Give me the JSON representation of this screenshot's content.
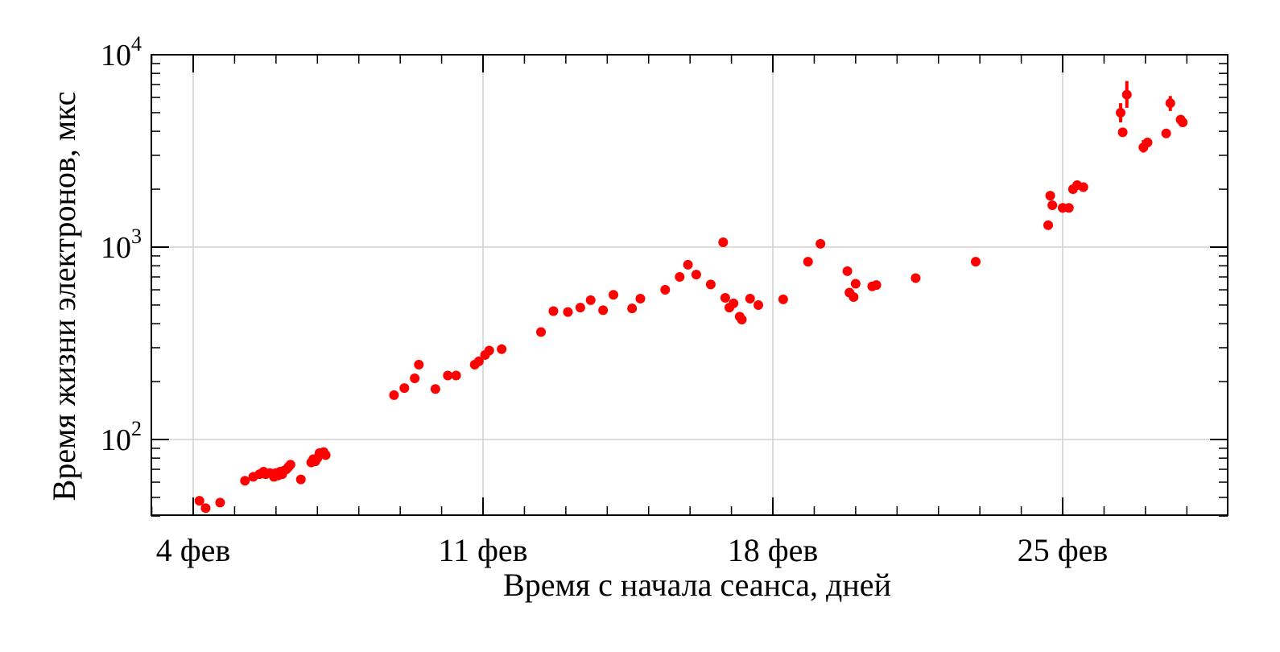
{
  "chart_data": {
    "type": "scatter",
    "title": "",
    "xlabel": "Время с начала сеанса, дней",
    "ylabel": "Время жизни электронов, мкс",
    "x_ticks": [
      {
        "value": 4,
        "label": "4 фев"
      },
      {
        "value": 11,
        "label": "11 фев"
      },
      {
        "value": 18,
        "label": "18 фев"
      },
      {
        "value": 25,
        "label": "25 фев"
      }
    ],
    "xlim": [
      2.9,
      28.9
    ],
    "y_scale": "log",
    "ylim": [
      40,
      10000
    ],
    "y_ticks": [
      {
        "value": 100,
        "base": "10",
        "exp": "2"
      },
      {
        "value": 1000,
        "base": "10",
        "exp": "3"
      },
      {
        "value": 10000,
        "base": "10",
        "exp": "4"
      }
    ],
    "grid": true,
    "marker_color": "#ff0000",
    "points": [
      {
        "x": 4.15,
        "y": 48
      },
      {
        "x": 4.3,
        "y": 44
      },
      {
        "x": 4.65,
        "y": 47
      },
      {
        "x": 5.25,
        "y": 61
      },
      {
        "x": 5.45,
        "y": 64
      },
      {
        "x": 5.6,
        "y": 66
      },
      {
        "x": 5.7,
        "y": 68
      },
      {
        "x": 5.75,
        "y": 66
      },
      {
        "x": 5.85,
        "y": 67
      },
      {
        "x": 5.95,
        "y": 64
      },
      {
        "x": 6.0,
        "y": 67
      },
      {
        "x": 6.05,
        "y": 65
      },
      {
        "x": 6.1,
        "y": 68
      },
      {
        "x": 6.15,
        "y": 66
      },
      {
        "x": 6.2,
        "y": 69
      },
      {
        "x": 6.25,
        "y": 70
      },
      {
        "x": 6.3,
        "y": 72
      },
      {
        "x": 6.35,
        "y": 74
      },
      {
        "x": 6.6,
        "y": 62
      },
      {
        "x": 6.85,
        "y": 76
      },
      {
        "x": 6.9,
        "y": 79
      },
      {
        "x": 6.95,
        "y": 77
      },
      {
        "x": 7.0,
        "y": 80
      },
      {
        "x": 7.05,
        "y": 85
      },
      {
        "x": 7.1,
        "y": 84
      },
      {
        "x": 7.15,
        "y": 86
      },
      {
        "x": 7.2,
        "y": 83
      },
      {
        "x": 8.85,
        "y": 170
      },
      {
        "x": 9.1,
        "y": 185
      },
      {
        "x": 9.35,
        "y": 208
      },
      {
        "x": 9.45,
        "y": 245
      },
      {
        "x": 9.85,
        "y": 183
      },
      {
        "x": 10.15,
        "y": 215
      },
      {
        "x": 10.35,
        "y": 215
      },
      {
        "x": 10.8,
        "y": 245
      },
      {
        "x": 10.9,
        "y": 255
      },
      {
        "x": 11.05,
        "y": 275
      },
      {
        "x": 11.15,
        "y": 290
      },
      {
        "x": 11.45,
        "y": 295
      },
      {
        "x": 12.4,
        "y": 362
      },
      {
        "x": 12.7,
        "y": 465
      },
      {
        "x": 13.05,
        "y": 460
      },
      {
        "x": 13.35,
        "y": 485
      },
      {
        "x": 13.6,
        "y": 530
      },
      {
        "x": 13.9,
        "y": 470
      },
      {
        "x": 14.15,
        "y": 565
      },
      {
        "x": 14.6,
        "y": 480
      },
      {
        "x": 14.8,
        "y": 540
      },
      {
        "x": 15.4,
        "y": 600
      },
      {
        "x": 15.75,
        "y": 700
      },
      {
        "x": 15.95,
        "y": 810
      },
      {
        "x": 16.15,
        "y": 720
      },
      {
        "x": 16.5,
        "y": 640
      },
      {
        "x": 16.8,
        "y": 1060
      },
      {
        "x": 16.85,
        "y": 545
      },
      {
        "x": 16.95,
        "y": 485
      },
      {
        "x": 17.05,
        "y": 510
      },
      {
        "x": 17.2,
        "y": 435
      },
      {
        "x": 17.25,
        "y": 420
      },
      {
        "x": 17.45,
        "y": 540
      },
      {
        "x": 17.65,
        "y": 500
      },
      {
        "x": 18.25,
        "y": 535
      },
      {
        "x": 18.85,
        "y": 840
      },
      {
        "x": 19.15,
        "y": 1040
      },
      {
        "x": 19.8,
        "y": 750
      },
      {
        "x": 19.85,
        "y": 580
      },
      {
        "x": 19.95,
        "y": 550
      },
      {
        "x": 20.0,
        "y": 645
      },
      {
        "x": 20.4,
        "y": 625
      },
      {
        "x": 20.5,
        "y": 635
      },
      {
        "x": 21.45,
        "y": 690
      },
      {
        "x": 22.9,
        "y": 840
      },
      {
        "x": 24.65,
        "y": 1300
      },
      {
        "x": 24.7,
        "y": 1850
      },
      {
        "x": 24.75,
        "y": 1650
      },
      {
        "x": 25.0,
        "y": 1600
      },
      {
        "x": 25.15,
        "y": 1600
      },
      {
        "x": 25.25,
        "y": 2000
      },
      {
        "x": 25.35,
        "y": 2100
      },
      {
        "x": 25.5,
        "y": 2050
      },
      {
        "x": 26.4,
        "y": 5000
      },
      {
        "x": 26.45,
        "y": 3950
      },
      {
        "x": 26.55,
        "y": 6200
      },
      {
        "x": 26.95,
        "y": 3300
      },
      {
        "x": 27.05,
        "y": 3500
      },
      {
        "x": 27.5,
        "y": 3900
      },
      {
        "x": 27.6,
        "y": 5600
      },
      {
        "x": 27.85,
        "y": 4600
      },
      {
        "x": 27.9,
        "y": 4450
      }
    ],
    "error_bars": [
      {
        "x": 26.4,
        "y": 5000,
        "low": 4450,
        "high": 5600
      },
      {
        "x": 26.55,
        "y": 6200,
        "low": 5300,
        "high": 7300
      },
      {
        "x": 26.95,
        "y": 3300,
        "low": 3100,
        "high": 3600
      },
      {
        "x": 27.6,
        "y": 5600,
        "low": 5100,
        "high": 6100
      },
      {
        "x": 27.85,
        "y": 4600,
        "low": 4350,
        "high": 4850
      }
    ]
  }
}
